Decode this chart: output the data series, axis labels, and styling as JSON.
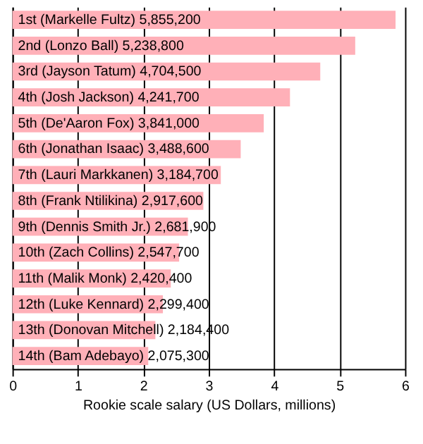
{
  "chart_data": {
    "type": "bar",
    "orientation": "horizontal",
    "xlabel": "Rookie scale salary (US Dollars, millions)",
    "categories": [
      "1st (Markelle Fultz) 5,855,200",
      "2nd (Lonzo Ball) 5,238,800",
      "3rd (Jayson Tatum) 4,704,500",
      "4th (Josh Jackson) 4,241,700",
      "5th (De'Aaron Fox) 3,841,000",
      "6th (Jonathan Isaac) 3,488,600",
      "7th (Lauri Markkanen) 3,184,700",
      "8th (Frank Ntilikina) 2,917,600",
      "9th (Dennis Smith Jr.) 2,681,900",
      "10th (Zach Collins) 2,547,700",
      "11th (Malik Monk) 2,420,400",
      "12th (Luke Kennard) 2,299,400",
      "13th (Donovan Mitchell) 2,184,400",
      "14th (Bam Adebayo) 2,075,300"
    ],
    "values": [
      5.8552,
      5.2388,
      4.7045,
      4.2417,
      3.841,
      3.4886,
      3.1847,
      2.9176,
      2.6819,
      2.5477,
      2.4204,
      2.2994,
      2.1844,
      2.0753
    ],
    "color": "#ffb0b8",
    "xlim": [
      0,
      6
    ],
    "xticks": [
      0,
      1,
      2,
      3,
      4,
      5,
      6
    ],
    "grid": "x",
    "tick_labels": "x"
  }
}
